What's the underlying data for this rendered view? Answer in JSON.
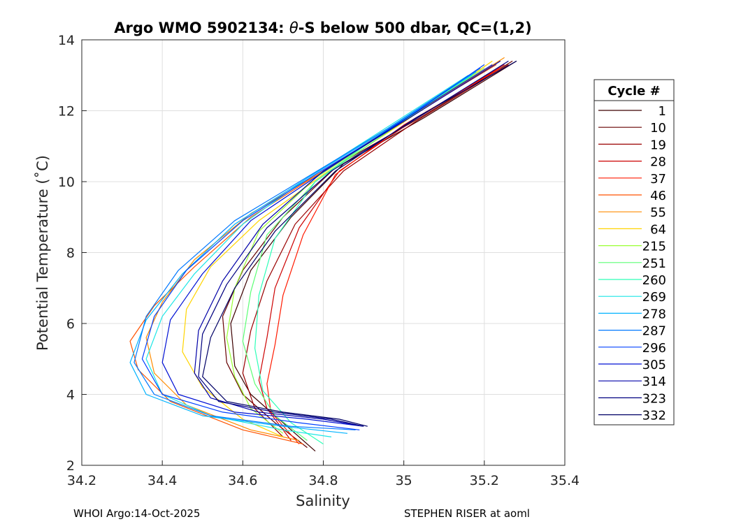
{
  "chart_data": {
    "type": "line",
    "title_prefix": "Argo WMO 5902134: ",
    "title_symbol": "θ",
    "title_suffix": "-S below 500 dbar,  QC=(1,2)",
    "xlabel": "Salinity",
    "ylabel": "Potential Temperature (˚C)",
    "xlim": [
      34.2,
      35.4
    ],
    "ylim": [
      2,
      14
    ],
    "xticks": [
      "34.2",
      "34.4",
      "34.6",
      "34.8",
      "35",
      "35.2",
      "35.4"
    ],
    "yticks": [
      "2",
      "4",
      "6",
      "8",
      "10",
      "12",
      "14"
    ],
    "grid": true,
    "legend": {
      "title": "Cycle #",
      "placement": "outside-right",
      "entries": [
        {
          "label": "1",
          "color": "#3d0000"
        },
        {
          "label": "10",
          "color": "#660000"
        },
        {
          "label": "19",
          "color": "#990000"
        },
        {
          "label": "28",
          "color": "#cc0000"
        },
        {
          "label": "37",
          "color": "#ff1a00"
        },
        {
          "label": "46",
          "color": "#ff5200"
        },
        {
          "label": "55",
          "color": "#ff8c00"
        },
        {
          "label": "64",
          "color": "#ffd400"
        },
        {
          "label": "215",
          "color": "#99ff33"
        },
        {
          "label": "251",
          "color": "#5cff75"
        },
        {
          "label": "260",
          "color": "#2effb8"
        },
        {
          "label": "269",
          "color": "#1ae6e6"
        },
        {
          "label": "278",
          "color": "#00b3ff"
        },
        {
          "label": "287",
          "color": "#0078ff"
        },
        {
          "label": "296",
          "color": "#0040ff"
        },
        {
          "label": "305",
          "color": "#0010d4"
        },
        {
          "label": "314",
          "color": "#0000a8"
        },
        {
          "label": "323",
          "color": "#000080"
        },
        {
          "label": "332",
          "color": "#000066"
        }
      ]
    },
    "series": [
      {
        "name": "1",
        "S": [
          35.28,
          35.05,
          34.85,
          34.72,
          34.62,
          34.57,
          34.58,
          34.62,
          34.7,
          34.78
        ],
        "T": [
          13.4,
          11.8,
          10.5,
          9.0,
          7.5,
          6.0,
          4.8,
          4.0,
          3.2,
          2.4
        ]
      },
      {
        "name": "10",
        "S": [
          35.27,
          35.04,
          34.84,
          34.7,
          34.6,
          34.55,
          34.56,
          34.6,
          34.68,
          34.76
        ],
        "T": [
          13.4,
          11.8,
          10.5,
          9.0,
          7.5,
          6.2,
          4.9,
          4.0,
          3.2,
          2.5
        ]
      },
      {
        "name": "19",
        "S": [
          35.26,
          35.03,
          34.85,
          34.73,
          34.66,
          34.62,
          34.6,
          34.63,
          34.7
        ],
        "T": [
          13.3,
          11.7,
          10.3,
          8.8,
          7.2,
          5.8,
          4.6,
          3.6,
          2.8
        ]
      },
      {
        "name": "28",
        "S": [
          35.25,
          35.02,
          34.84,
          34.74,
          34.68,
          34.66,
          34.64,
          34.66,
          34.72
        ],
        "T": [
          13.3,
          11.7,
          10.3,
          8.7,
          7.0,
          5.6,
          4.4,
          3.6,
          2.7
        ]
      },
      {
        "name": "37",
        "S": [
          35.24,
          35.0,
          34.83,
          34.75,
          34.7,
          34.68,
          34.66,
          34.67,
          34.74
        ],
        "T": [
          13.2,
          11.6,
          10.2,
          8.5,
          6.8,
          5.4,
          4.3,
          3.5,
          2.6
        ]
      },
      {
        "name": "46",
        "S": [
          35.23,
          34.98,
          34.8,
          34.62,
          34.48,
          34.38,
          34.32,
          34.34,
          34.42,
          34.6,
          34.75
        ],
        "T": [
          13.3,
          11.6,
          10.3,
          9.0,
          7.6,
          6.5,
          5.5,
          4.7,
          3.8,
          3.0,
          2.6
        ]
      },
      {
        "name": "55",
        "S": [
          35.25,
          35.0,
          34.8,
          34.62,
          34.48,
          34.4,
          34.36,
          34.38,
          34.46,
          34.62,
          34.74
        ],
        "T": [
          13.5,
          11.7,
          10.3,
          9.1,
          7.8,
          6.6,
          5.6,
          4.6,
          3.7,
          3.0,
          2.7
        ]
      },
      {
        "name": "64",
        "S": [
          35.22,
          34.99,
          34.8,
          34.64,
          34.52,
          34.46,
          34.45,
          34.5,
          34.6,
          34.7
        ],
        "T": [
          13.4,
          11.6,
          10.2,
          8.9,
          7.6,
          6.4,
          5.2,
          4.2,
          3.3,
          2.8
        ]
      },
      {
        "name": "215",
        "S": [
          35.2,
          34.97,
          34.78,
          34.64,
          34.58,
          34.56,
          34.58,
          34.62,
          34.7
        ],
        "T": [
          13.2,
          11.5,
          10.1,
          8.6,
          7.0,
          5.6,
          4.5,
          3.6,
          2.9
        ]
      },
      {
        "name": "251",
        "S": [
          35.18,
          34.96,
          34.78,
          34.66,
          34.62,
          34.6,
          34.63,
          34.68,
          34.76
        ],
        "T": [
          13.1,
          11.4,
          10.0,
          8.5,
          6.9,
          5.5,
          4.3,
          3.4,
          2.7
        ]
      },
      {
        "name": "260",
        "S": [
          35.17,
          34.95,
          34.78,
          34.68,
          34.64,
          34.63,
          34.65,
          34.72,
          34.8
        ],
        "T": [
          13.0,
          11.4,
          10.0,
          8.4,
          6.8,
          5.3,
          4.1,
          3.2,
          2.6
        ]
      },
      {
        "name": "269",
        "S": [
          35.16,
          34.94,
          34.76,
          34.6,
          34.48,
          34.4,
          34.36,
          34.4,
          34.52,
          34.7,
          34.82
        ],
        "T": [
          13.0,
          11.4,
          10.1,
          8.8,
          7.4,
          6.2,
          5.0,
          4.0,
          3.4,
          3.0,
          2.8
        ]
      },
      {
        "name": "278",
        "S": [
          35.18,
          34.95,
          34.76,
          34.58,
          34.45,
          34.36,
          34.32,
          34.36,
          34.5,
          34.7,
          34.86
        ],
        "T": [
          13.1,
          11.4,
          10.1,
          8.8,
          7.4,
          6.1,
          4.9,
          4.0,
          3.4,
          3.1,
          2.9
        ]
      },
      {
        "name": "287",
        "S": [
          35.19,
          34.96,
          34.77,
          34.58,
          34.44,
          34.36,
          34.33,
          34.38,
          34.52,
          34.72,
          34.88
        ],
        "T": [
          13.2,
          11.5,
          10.2,
          8.9,
          7.5,
          6.2,
          4.9,
          4.0,
          3.4,
          3.1,
          3.0
        ]
      },
      {
        "name": "296",
        "S": [
          35.2,
          34.97,
          34.78,
          34.6,
          34.46,
          34.38,
          34.35,
          34.4,
          34.55,
          34.74,
          34.89
        ],
        "T": [
          13.3,
          11.5,
          10.2,
          8.9,
          7.5,
          6.2,
          5.0,
          4.0,
          3.5,
          3.2,
          3.0
        ]
      },
      {
        "name": "305",
        "S": [
          35.22,
          34.98,
          34.79,
          34.62,
          34.5,
          34.42,
          34.4,
          34.44,
          34.58,
          34.76,
          34.9
        ],
        "T": [
          13.3,
          11.6,
          10.2,
          8.9,
          7.4,
          6.1,
          4.9,
          4.0,
          3.5,
          3.3,
          3.1
        ]
      },
      {
        "name": "314",
        "S": [
          35.24,
          35.0,
          34.8,
          34.65,
          34.55,
          34.49,
          34.48,
          34.52,
          34.64,
          34.8,
          34.9
        ],
        "T": [
          13.4,
          11.7,
          10.3,
          8.8,
          7.2,
          5.8,
          4.6,
          3.9,
          3.5,
          3.3,
          3.1
        ]
      },
      {
        "name": "323",
        "S": [
          35.26,
          35.02,
          34.82,
          34.66,
          34.56,
          34.5,
          34.49,
          34.54,
          34.68,
          34.82,
          34.9
        ],
        "T": [
          13.4,
          11.7,
          10.3,
          8.7,
          7.1,
          5.7,
          4.5,
          3.8,
          3.5,
          3.3,
          3.1
        ]
      },
      {
        "name": "332",
        "S": [
          35.28,
          35.03,
          34.83,
          34.68,
          34.58,
          34.52,
          34.5,
          34.56,
          34.7,
          34.84,
          34.91
        ],
        "T": [
          13.4,
          11.8,
          10.3,
          8.6,
          7.0,
          5.6,
          4.5,
          3.8,
          3.5,
          3.3,
          3.1
        ]
      }
    ]
  },
  "footer": {
    "left": "WHOI Argo:14-Oct-2025",
    "right": "STEPHEN RISER at aoml"
  }
}
